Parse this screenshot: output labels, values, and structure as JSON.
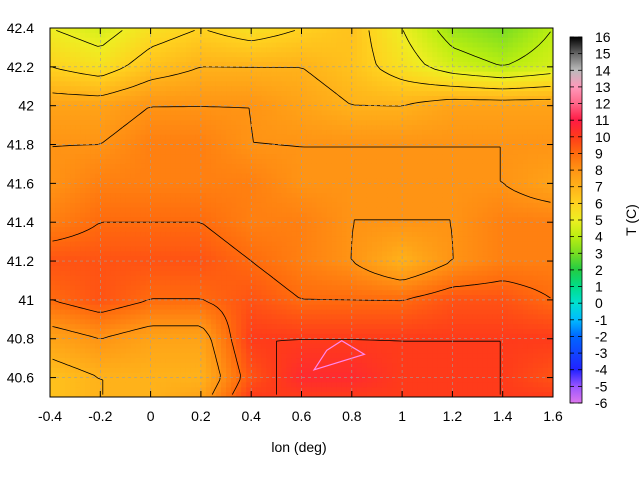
{
  "chart_data": {
    "type": "heatmap",
    "title": "",
    "xlabel": "lon (deg)",
    "ylabel": "",
    "colorbar_label": "T (C)",
    "xlim": [
      -0.4,
      1.6
    ],
    "ylim": [
      40.5,
      42.4
    ],
    "x_ticks": [
      -0.4,
      -0.2,
      0,
      0.2,
      0.4,
      0.6,
      0.8,
      1,
      1.2,
      1.4,
      1.6
    ],
    "x_tick_labels": [
      "-0.4",
      "-0.2",
      "0",
      "0.2",
      "0.4",
      "0.6",
      "0.8",
      "1",
      "1.2",
      "1.4",
      "1.6"
    ],
    "y_ticks": [
      40.6,
      40.8,
      41,
      41.2,
      41.4,
      41.6,
      41.8,
      42,
      42.2,
      42.4
    ],
    "y_tick_labels": [
      "40.6",
      "40.8",
      "41",
      "41.2",
      "41.4",
      "41.6",
      "41.8",
      "42",
      "42.2",
      "42.4"
    ],
    "colorbar_range": [
      -6,
      16
    ],
    "colorbar_ticks": [
      16,
      15,
      14,
      13,
      12,
      11,
      10,
      9,
      8,
      7,
      6,
      5,
      4,
      3,
      2,
      1,
      0,
      -1,
      -2,
      -3,
      -4,
      -5,
      -6
    ],
    "colorbar_tick_labels": [
      "16",
      "15",
      "14",
      "13",
      "12",
      "11",
      "10",
      "9",
      "8",
      "7",
      "6",
      "5",
      "4",
      "3",
      "2",
      "1",
      "0",
      "-1",
      "-2",
      "-3",
      "-4",
      "-5",
      "-6"
    ],
    "grid": true,
    "contour_lines": true,
    "temperature_grid": {
      "lon": [
        -0.4,
        -0.2,
        0,
        0.2,
        0.4,
        0.6,
        0.8,
        1.0,
        1.2,
        1.4,
        1.6
      ],
      "lat": [
        42.4,
        42.2,
        42.0,
        41.8,
        41.6,
        41.4,
        41.2,
        41.0,
        40.8,
        40.6,
        40.5
      ],
      "values": [
        [
          5,
          4.5,
          5.5,
          6,
          5.5,
          6,
          6.5,
          5,
          3.5,
          3,
          4
        ],
        [
          6,
          5.5,
          6.5,
          7,
          7,
          7,
          6.5,
          5.5,
          4.5,
          4,
          4.5
        ],
        [
          7.5,
          7.5,
          8,
          8,
          8,
          7.5,
          7,
          7,
          7.5,
          7.5,
          7.5
        ],
        [
          8,
          8,
          8.5,
          8.5,
          8,
          8,
          8,
          8,
          8,
          8,
          8
        ],
        [
          8,
          8.5,
          8.5,
          8.5,
          8.5,
          8,
          8,
          8,
          8,
          8,
          7.5
        ],
        [
          8.5,
          9,
          9,
          9,
          8.5,
          8.5,
          8,
          8,
          8,
          8.5,
          8.5
        ],
        [
          9.5,
          9.5,
          9.5,
          9.5,
          9,
          8.5,
          8,
          7,
          8,
          8.5,
          8.5
        ],
        [
          9,
          9.5,
          9,
          9,
          9.5,
          9,
          9,
          9,
          9.5,
          9.5,
          9
        ],
        [
          7.5,
          8,
          7.5,
          7.5,
          10,
          10,
          10,
          10,
          10,
          10,
          10
        ],
        [
          6.5,
          7,
          7,
          7,
          9.5,
          10.5,
          10.5,
          10,
          10,
          10,
          9.5
        ],
        [
          6.5,
          7,
          7,
          7.5,
          10,
          10,
          10,
          10,
          10,
          10,
          10
        ]
      ]
    },
    "warm_marks": [
      [
        0.7,
        40.74
      ],
      [
        0.76,
        40.79
      ],
      [
        0.85,
        40.72
      ],
      [
        0.65,
        40.64
      ]
    ],
    "warm_mark_value": 12.5,
    "colormap_stops": [
      {
        "v": -6,
        "c": "#dd77ee"
      },
      {
        "v": -5,
        "c": "#9955ff"
      },
      {
        "v": -4,
        "c": "#2222ff"
      },
      {
        "v": -2,
        "c": "#0066ff"
      },
      {
        "v": -1,
        "c": "#00bbff"
      },
      {
        "v": 0,
        "c": "#00e0d0"
      },
      {
        "v": 1,
        "c": "#00dd88"
      },
      {
        "v": 2,
        "c": "#22cc44"
      },
      {
        "v": 3,
        "c": "#77dd22"
      },
      {
        "v": 4,
        "c": "#bbee11"
      },
      {
        "v": 5,
        "c": "#eeee22"
      },
      {
        "v": 6,
        "c": "#ffd21f"
      },
      {
        "v": 7,
        "c": "#ffb21a"
      },
      {
        "v": 8,
        "c": "#ff9414"
      },
      {
        "v": 9,
        "c": "#ff6b0d"
      },
      {
        "v": 10,
        "c": "#ff3b1a"
      },
      {
        "v": 11,
        "c": "#ff1a44"
      },
      {
        "v": 12,
        "c": "#ff6688"
      },
      {
        "v": 13,
        "c": "#ff99bb"
      },
      {
        "v": 14,
        "c": "#bbbbbb"
      },
      {
        "v": 15,
        "c": "#666666"
      },
      {
        "v": 16,
        "c": "#000000"
      }
    ],
    "colors": {
      "grid": "#a0a0a0",
      "contour": "#000000",
      "warm_mark": "#ff88ee"
    }
  }
}
